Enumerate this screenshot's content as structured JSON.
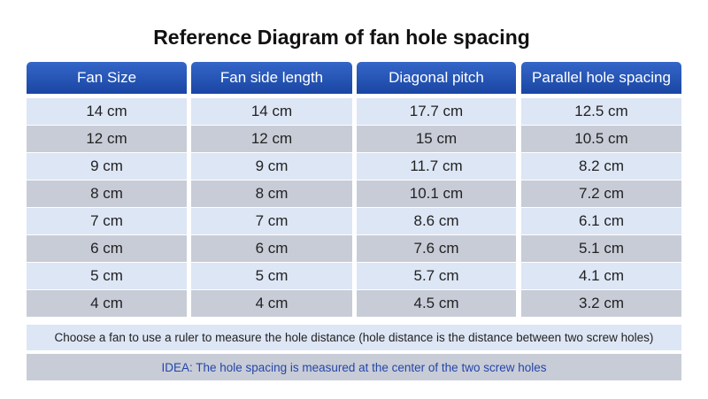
{
  "header": {
    "title": "Reference Diagram of fan hole spacing"
  },
  "table": {
    "columns": [
      "Fan Size",
      "Fan side length",
      "Diagonal pitch",
      "Parallel hole spacing"
    ],
    "rows": [
      [
        "14 cm",
        "14 cm",
        "17.7 cm",
        "12.5 cm"
      ],
      [
        "12 cm",
        "12 cm",
        "15 cm",
        "10.5 cm"
      ],
      [
        "9 cm",
        "9 cm",
        "11.7 cm",
        "8.2 cm"
      ],
      [
        "8 cm",
        "8 cm",
        "10.1 cm",
        "7.2 cm"
      ],
      [
        "7 cm",
        "7 cm",
        "8.6 cm",
        "6.1 cm"
      ],
      [
        "6 cm",
        "6 cm",
        "7.6 cm",
        "5.1 cm"
      ],
      [
        "5 cm",
        "5 cm",
        "5.7 cm",
        "4.1 cm"
      ],
      [
        "4 cm",
        "4 cm",
        "4.5 cm",
        "3.2 cm"
      ]
    ]
  },
  "notes": [
    "Choose a fan to use a ruler to measure the hole distance (hole distance is the distance between two screw holes)",
    "IDEA: The hole spacing is measured at the center of the two screw holes"
  ]
}
